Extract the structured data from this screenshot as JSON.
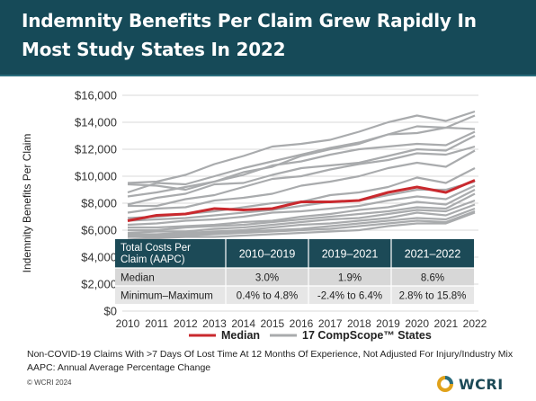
{
  "title": {
    "line1": "Indemnity Benefits Per Claim Grew Rapidly In",
    "line2": "Most Study States In 2022"
  },
  "chart_data": {
    "type": "line",
    "ylabel": "Indemnity Benefits Per Claim",
    "x": [
      "2010",
      "2011",
      "2012",
      "2013",
      "2014",
      "2015",
      "2016",
      "2017",
      "2018",
      "2019",
      "2020",
      "2021",
      "2022"
    ],
    "yticks": [
      "$0",
      "$2,000",
      "$4,000",
      "$6,000",
      "$8,000",
      "$10,000",
      "$12,000",
      "$14,000",
      "$16,000"
    ],
    "ylim": [
      0,
      16000
    ],
    "grid": true,
    "legend_position": "bottom",
    "series": [
      {
        "name": "Median",
        "role": "median",
        "color": "#c9292e",
        "values": [
          6700,
          7100,
          7200,
          7600,
          7500,
          7600,
          8100,
          8100,
          8200,
          8800,
          9200,
          8800,
          9700
        ]
      }
    ],
    "state_lines": {
      "name": "17 CompScope™ States",
      "color": "#a9abad",
      "lines": [
        [
          9500,
          9600,
          10100,
          10900,
          11500,
          12200,
          12400,
          12700,
          13300,
          14000,
          14500,
          14100,
          14800
        ],
        [
          8800,
          9500,
          9400,
          10000,
          10600,
          11100,
          11600,
          12100,
          12500,
          13100,
          13700,
          13600,
          14500
        ],
        [
          9400,
          9300,
          9000,
          9600,
          10300,
          10700,
          11500,
          12000,
          12400,
          13100,
          13200,
          13600,
          13500
        ],
        [
          8500,
          8800,
          9200,
          9600,
          10100,
          10800,
          11100,
          11600,
          12000,
          12200,
          12400,
          12300,
          13300
        ],
        [
          7900,
          8400,
          8700,
          9400,
          9500,
          10100,
          10600,
          10800,
          11000,
          11500,
          12000,
          11900,
          13000
        ],
        [
          7800,
          7800,
          8300,
          8600,
          9200,
          9800,
          10000,
          10500,
          10900,
          11200,
          11700,
          11600,
          12200
        ],
        [
          7300,
          7600,
          7700,
          8200,
          8400,
          8700,
          9300,
          9600,
          10000,
          10600,
          11000,
          10700,
          11900
        ],
        [
          6900,
          7000,
          7200,
          7400,
          7700,
          8000,
          8100,
          8600,
          8800,
          9200,
          9900,
          9500,
          10600
        ],
        [
          6700,
          6800,
          6900,
          7100,
          7300,
          7500,
          7800,
          8100,
          8200,
          8600,
          9000,
          9000,
          9600
        ],
        [
          6400,
          6500,
          6700,
          6800,
          7000,
          7300,
          7400,
          7600,
          7800,
          8200,
          8500,
          8300,
          9300
        ],
        [
          6200,
          6200,
          6300,
          6400,
          6600,
          6700,
          7000,
          7200,
          7500,
          7700,
          8100,
          7900,
          9000
        ],
        [
          6000,
          6000,
          6200,
          6300,
          6400,
          6600,
          6800,
          7000,
          7200,
          7400,
          7700,
          7600,
          8700
        ],
        [
          5800,
          5900,
          5900,
          6100,
          6200,
          6400,
          6600,
          6800,
          6900,
          7200,
          7500,
          7400,
          8200
        ],
        [
          5700,
          5700,
          5800,
          5900,
          6000,
          6200,
          6400,
          6500,
          6700,
          6900,
          7300,
          7100,
          7900
        ],
        [
          5600,
          5600,
          5700,
          5800,
          5900,
          6000,
          6100,
          6300,
          6500,
          6700,
          6900,
          6800,
          7600
        ],
        [
          5500,
          5500,
          5600,
          5700,
          5800,
          5900,
          6000,
          6100,
          6300,
          6500,
          6700,
          6600,
          7400
        ],
        [
          5300,
          5400,
          5500,
          5500,
          5600,
          5700,
          5800,
          5900,
          6000,
          6300,
          6500,
          6500,
          7300
        ]
      ]
    },
    "table": {
      "headers": [
        "Total Costs Per Claim (AAPC)",
        "2010–2019",
        "2019–2021",
        "2021–2022"
      ],
      "rows": [
        [
          "Median",
          "3.0%",
          "1.9%",
          "8.6%"
        ],
        [
          "Minimum–Maximum",
          "0.4% to 4.8%",
          "-2.4% to 6.4%",
          "2.8% to 15.8%"
        ]
      ]
    }
  },
  "legend": {
    "median_label": "Median",
    "states_label": "17 CompScope™ States"
  },
  "footnotes": {
    "line1": "Non-COVID-19 Claims With >7 Days Of Lost Time At 12 Months Of Experience, Not Adjusted For Injury/Industry Mix",
    "line2": "AAPC: Annual Average Percentage Change"
  },
  "copyright": "© WCRI 2024",
  "logo": {
    "text": "WCRI",
    "icon": "wcri-logo-icon"
  }
}
